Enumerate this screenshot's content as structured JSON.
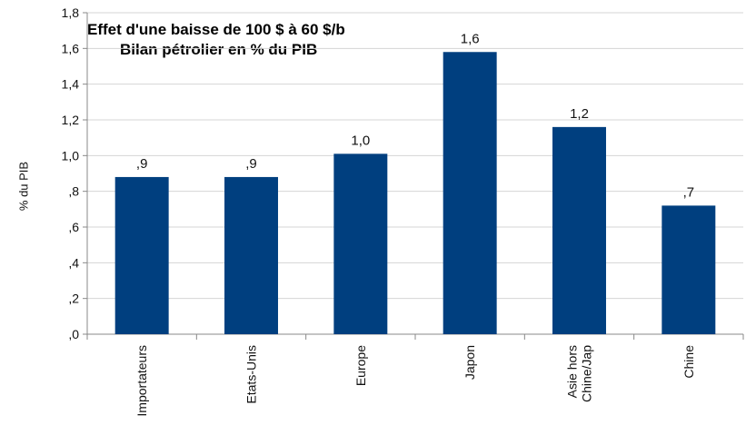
{
  "chart_data": {
    "type": "bar",
    "title": "Effet d'une baisse de 100 $ à 60 $/b",
    "subtitle": "Bilan pétrolier en %  du PIB",
    "xlabel": "",
    "ylabel": "% du PIB",
    "ylim": [
      0,
      1.8
    ],
    "yticks": [
      ",0",
      ",2",
      ",4",
      ",6",
      ",8",
      "1,0",
      "1,2",
      "1,4",
      "1,6",
      "1,8"
    ],
    "categories": [
      "Importateurs",
      "Etats-Unis",
      "Europe",
      "Japon",
      "Asie hors|Chine/Jap",
      "Chine"
    ],
    "values": [
      0.88,
      0.88,
      1.01,
      1.58,
      1.16,
      0.72
    ],
    "data_labels": [
      ",9",
      ",9",
      "1,0",
      "1,6",
      "1,2",
      ",7"
    ],
    "bar_color": "#003f7f",
    "grid": true,
    "legend": "none"
  }
}
